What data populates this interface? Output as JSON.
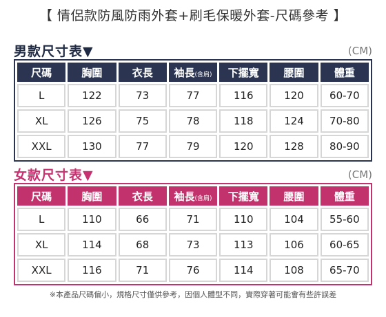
{
  "title": "【 情侶款防風防雨外套+刷毛保暖外套-尺碼參考 】",
  "men": {
    "heading": "男款尺寸表▼",
    "unit": "(CM)",
    "columns": [
      "尺碼",
      "胸圍",
      "衣長",
      "袖長",
      "下擺寬",
      "腰圍",
      "體重"
    ],
    "sleeve_note": "(含肩)",
    "rows": [
      [
        "L",
        "122",
        "73",
        "77",
        "116",
        "120",
        "60-70"
      ],
      [
        "XL",
        "126",
        "75",
        "78",
        "118",
        "124",
        "70-80"
      ],
      [
        "XXL",
        "130",
        "77",
        "79",
        "120",
        "128",
        "80-90"
      ]
    ]
  },
  "women": {
    "heading": "女款尺寸表▼",
    "unit": "(CM)",
    "columns": [
      "尺碼",
      "胸圍",
      "衣長",
      "袖長",
      "下擺寬",
      "腰圍",
      "體重"
    ],
    "sleeve_note": "(含肩)",
    "rows": [
      [
        "L",
        "110",
        "66",
        "71",
        "110",
        "104",
        "55-60"
      ],
      [
        "XL",
        "114",
        "68",
        "73",
        "113",
        "106",
        "60-65"
      ],
      [
        "XXL",
        "116",
        "71",
        "76",
        "114",
        "108",
        "65-70"
      ]
    ]
  },
  "footnote": "※本產品尺碼偏小，規格尺寸僅供參考，因個人體型不同，實際穿著可能會有些許誤差"
}
